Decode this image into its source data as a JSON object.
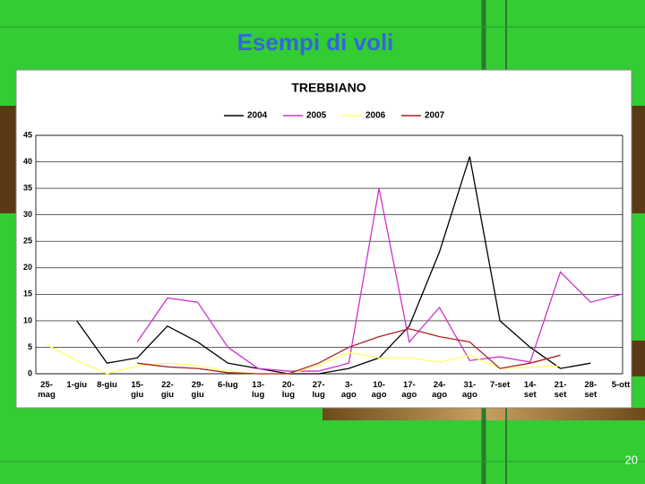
{
  "slide_title": "Esempi di voli",
  "slide_number": "20",
  "chart_data": {
    "type": "line",
    "title": "TREBBIANO",
    "categories": [
      "25-mag",
      "1-giu",
      "8-giu",
      "15-giu",
      "22-giu",
      "29-giu",
      "6-lug",
      "13-lug",
      "20-lug",
      "27-lug",
      "3-ago",
      "10-ago",
      "17-ago",
      "24-ago",
      "31-ago",
      "7-set",
      "14-set",
      "21-set",
      "28-set",
      "5-ott"
    ],
    "series": [
      {
        "name": "2004",
        "color": "#000000",
        "values": [
          null,
          10,
          2,
          3,
          9,
          6,
          2,
          1,
          0,
          0,
          1,
          3,
          9,
          23,
          41,
          10,
          5,
          1,
          2,
          null
        ]
      },
      {
        "name": "2005",
        "color": "#cc33cc",
        "values": [
          null,
          null,
          null,
          6,
          14.3,
          13.5,
          5,
          1,
          0.5,
          0.5,
          2,
          35,
          6,
          12.5,
          2.5,
          3.2,
          2.2,
          19.2,
          13.5,
          15
        ]
      },
      {
        "name": "2006",
        "color": "#ffff66",
        "values": [
          5.5,
          2.5,
          0,
          1.5,
          2,
          1.5,
          0.5,
          0,
          0,
          1.5,
          4,
          3,
          3,
          2.2,
          3.5,
          1,
          1.2,
          1.5,
          null,
          null
        ]
      },
      {
        "name": "2007",
        "color": "#aa2222",
        "values": [
          null,
          null,
          null,
          2,
          1.3,
          1,
          0.2,
          0,
          0,
          2,
          5,
          7,
          8.5,
          7,
          6,
          1,
          2,
          3.5,
          null,
          null
        ]
      }
    ],
    "ylim": [
      0,
      45
    ],
    "yticks": [
      0,
      5,
      10,
      15,
      20,
      25,
      30,
      35,
      40,
      45
    ],
    "grid": true
  }
}
